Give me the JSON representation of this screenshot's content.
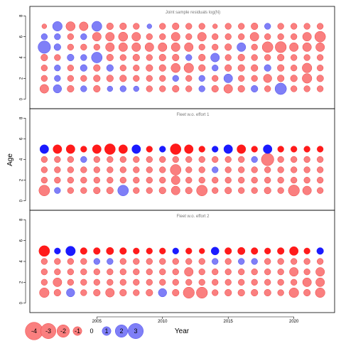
{
  "chart_data": {
    "type": "bubble",
    "xlabel": "Year",
    "ylabel": "Age",
    "xlim": [
      1999.9,
      2023.1
    ],
    "ylim": [
      -0.5,
      8.5
    ],
    "x_ticks": [
      2005,
      2010,
      2015,
      2020
    ],
    "y_ticks": [
      0,
      2,
      4,
      6,
      8
    ],
    "years": [
      2001,
      2002,
      2003,
      2004,
      2005,
      2006,
      2007,
      2008,
      2009,
      2010,
      2011,
      2012,
      2013,
      2014,
      2015,
      2016,
      2017,
      2018,
      2019,
      2020,
      2021,
      2022
    ],
    "colors": {
      "negative_fill": "#fa7f7f",
      "negative_stroke": "#ee4444",
      "positive_fill": "#7f7ff7",
      "positive_stroke": "#4d4dee",
      "negative_solid": "#ff1a1a",
      "positive_solid": "#1a1aff"
    },
    "legend": {
      "values": [
        -4,
        -3,
        -2,
        -1,
        0,
        1,
        2,
        3
      ],
      "labels": [
        "-4",
        "-3",
        "-2",
        "-1",
        "0",
        "1",
        "2",
        "3"
      ]
    },
    "panels": [
      {
        "title": "Joint sample residuals log(N)",
        "ages": [
          1,
          2,
          3,
          4,
          5,
          6,
          7
        ],
        "solid_ages": [],
        "residuals": [
          [
            -1.0,
            0.9,
            -0.6,
            0.5,
            -0.6,
            0.4,
            0.5,
            0.4,
            -0.5,
            -0.5,
            -0.6,
            -0.5,
            0.5,
            -0.6,
            -1.0,
            -0.6,
            0.6,
            -0.5,
            1.7,
            -0.5,
            -0.5,
            -0.5
          ],
          [
            -0.5,
            0.5,
            -0.5,
            -0.5,
            -0.6,
            -0.6,
            -0.6,
            -0.5,
            -0.5,
            -0.5,
            0.5,
            -0.5,
            0.5,
            -0.5,
            1.0,
            -0.5,
            -0.5,
            -0.9,
            -0.6,
            -0.6,
            -1.2,
            -0.6
          ],
          [
            -0.5,
            0.5,
            -0.5,
            0.6,
            -0.6,
            0.6,
            -0.5,
            -0.5,
            -0.6,
            -0.6,
            -1.1,
            -1.2,
            -0.6,
            0.5,
            -0.6,
            -0.6,
            -0.6,
            0.6,
            -0.6,
            -0.5,
            -1.2,
            -0.5
          ],
          [
            -0.6,
            -0.5,
            0.6,
            0.5,
            1.5,
            -0.6,
            -0.5,
            -0.6,
            -0.5,
            -0.6,
            -0.6,
            0.5,
            -0.6,
            1.0,
            -0.5,
            -0.6,
            -0.5,
            -0.5,
            -0.6,
            -0.5,
            -0.5,
            -0.5
          ],
          [
            2.0,
            0.6,
            -0.5,
            -0.5,
            -0.5,
            -1.0,
            -1.0,
            -1.0,
            -1.0,
            -1.0,
            -1.0,
            -1.0,
            -0.5,
            -0.5,
            -0.6,
            1.0,
            -0.5,
            -1.5,
            -1.6,
            -1.0,
            -1.0,
            -1.0
          ],
          [
            0.5,
            0.5,
            -0.5,
            0.5,
            -1.0,
            -1.0,
            -1.1,
            -1.0,
            -0.5,
            -0.5,
            -1.0,
            -0.5,
            -1.0,
            -0.5,
            -0.5,
            -0.5,
            -1.0,
            -0.5,
            -0.5,
            -0.5,
            -1.0,
            -1.5
          ],
          [
            -0.3,
            1.2,
            -1.1,
            -1.0,
            1.3,
            -0.6,
            -0.6,
            -0.5,
            0.3,
            -0.5,
            -0.6,
            -0.5,
            -0.5,
            -0.3,
            -0.5,
            -0.5,
            -0.6,
            0.5,
            -0.5,
            -0.5,
            -0.5,
            -0.5
          ]
        ]
      },
      {
        "title": "Fleet w.o. effort 1",
        "ages": [
          1,
          2,
          3,
          4,
          5
        ],
        "solid_ages": [
          5
        ],
        "residuals": [
          [
            -1.5,
            0.5,
            -0.5,
            -0.5,
            -0.6,
            -0.6,
            1.5,
            -0.5,
            -0.5,
            -0.6,
            -1.0,
            -0.6,
            -1.5,
            -0.5,
            -0.6,
            -0.5,
            -0.5,
            -0.6,
            -0.5,
            -1.6,
            -1.0,
            -0.5
          ],
          [
            -0.5,
            -0.5,
            -0.5,
            -0.5,
            -0.5,
            -0.5,
            -0.5,
            -0.5,
            -0.5,
            -0.5,
            -1.0,
            -0.5,
            -0.5,
            -0.5,
            -0.5,
            -0.5,
            -0.5,
            -0.5,
            -0.5,
            -0.5,
            -0.5,
            -0.5
          ],
          [
            -0.5,
            -0.5,
            -0.5,
            -0.5,
            -0.5,
            -0.5,
            -0.5,
            -0.5,
            -0.5,
            -0.5,
            -1.5,
            -0.5,
            -0.5,
            0.5,
            -0.5,
            -0.5,
            -0.5,
            -0.5,
            -0.5,
            -0.5,
            -0.5,
            -0.5
          ],
          [
            -0.5,
            -0.5,
            -0.5,
            0.5,
            -0.5,
            -0.5,
            -0.5,
            -0.5,
            -0.5,
            -0.5,
            -0.5,
            -0.5,
            -0.5,
            -0.5,
            -0.5,
            -0.5,
            0.5,
            -2.0,
            -0.5,
            -0.5,
            -0.5,
            -0.5
          ],
          [
            1.0,
            -1.0,
            -1.0,
            -0.5,
            -1.0,
            -1.5,
            -1.0,
            1.0,
            -0.5,
            0.5,
            -1.5,
            -1.0,
            -0.5,
            0.5,
            1.0,
            -1.0,
            -0.5,
            1.0,
            -0.5,
            -0.5,
            -0.5,
            -0.5
          ]
        ]
      },
      {
        "title": "Fleet w.o. effort 2",
        "ages": [
          1,
          2,
          3,
          4,
          5
        ],
        "solid_ages": [
          5
        ],
        "residuals": [
          [
            -1.2,
            -0.6,
            0.9,
            -0.5,
            -0.6,
            -1.0,
            -0.6,
            -0.5,
            -0.6,
            0.9,
            -0.6,
            -1.6,
            -1.6,
            -0.5,
            -0.6,
            -0.6,
            -0.6,
            -0.6,
            -0.5,
            -1.2,
            -0.6,
            -1.2
          ],
          [
            -0.5,
            -1.0,
            -0.5,
            -0.5,
            -0.5,
            -0.5,
            -0.5,
            -0.5,
            -0.5,
            -0.5,
            -0.5,
            -0.5,
            -0.5,
            -0.5,
            -0.5,
            -0.5,
            -0.5,
            -0.5,
            -0.5,
            -0.5,
            -1.0,
            -1.0
          ],
          [
            -0.5,
            -0.5,
            -0.5,
            -0.5,
            -0.5,
            -0.5,
            -0.5,
            -0.5,
            -0.5,
            -0.5,
            -0.5,
            -1.0,
            -0.5,
            -0.5,
            -0.5,
            -0.5,
            -0.5,
            -0.5,
            -0.5,
            -1.0,
            -0.5,
            -1.0
          ],
          [
            -0.5,
            -0.5,
            -0.5,
            -0.5,
            0.5,
            0.5,
            -0.5,
            -0.5,
            -0.5,
            -0.5,
            -0.5,
            -0.5,
            -0.5,
            0.5,
            -0.5,
            0.5,
            0.5,
            -0.5,
            -0.5,
            -0.5,
            -0.5,
            -0.5
          ],
          [
            -1.5,
            0.5,
            1.2,
            -0.6,
            -0.6,
            -0.7,
            -0.6,
            -0.5,
            -0.5,
            -0.5,
            0.5,
            -0.5,
            -0.4,
            0.8,
            -0.6,
            -0.7,
            -0.6,
            -0.5,
            -0.6,
            -1.0,
            -0.5,
            0.6
          ]
        ]
      }
    ]
  }
}
